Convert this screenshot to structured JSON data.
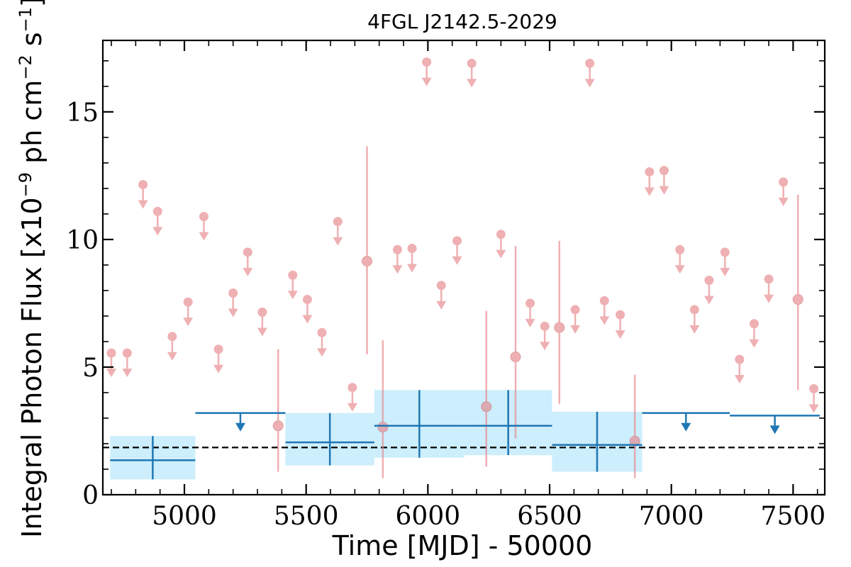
{
  "chart_data": {
    "type": "scatter",
    "title": "4FGL J2142.5-2029",
    "xlabel": "Time [MJD] - 50000",
    "ylabel": "Integral Photon Flux [x10",
    "ylabel_exp": "−9",
    "ylabel_units": " ph cm",
    "ylabel_cm_exp": "−2",
    "ylabel_s": " s",
    "ylabel_s_exp": "−1",
    "ylabel_end": "]",
    "xlim": [
      4665,
      7630
    ],
    "ylim": [
      0,
      17.8
    ],
    "xticks": [
      5000,
      5500,
      6000,
      6500,
      7000,
      7500
    ],
    "yticks": [
      0,
      5,
      10,
      15
    ],
    "mean_flux": 1.85,
    "colors": {
      "short_bins": "#e8878c",
      "long_bins": "#1f77b4",
      "long_band": "#cdeefc",
      "mean_line": "#000000"
    },
    "long_bins": [
      {
        "x0": 4695,
        "x1": 5045,
        "y": 1.35,
        "ylo": 0.6,
        "yhi": 2.3,
        "type": "point"
      },
      {
        "x0": 5045,
        "x1": 5415,
        "y": 3.2,
        "type": "ul"
      },
      {
        "x0": 5415,
        "x1": 5780,
        "y": 2.05,
        "ylo": 1.15,
        "yhi": 3.2,
        "type": "point"
      },
      {
        "x0": 5780,
        "x1": 6150,
        "y": 2.7,
        "ylo": 1.45,
        "yhi": 4.1,
        "type": "point"
      },
      {
        "x0": 6150,
        "x1": 6510,
        "y": 2.7,
        "ylo": 1.55,
        "yhi": 4.1,
        "type": "point"
      },
      {
        "x0": 6510,
        "x1": 6880,
        "y": 1.95,
        "ylo": 0.9,
        "yhi": 3.25,
        "type": "point"
      },
      {
        "x0": 6880,
        "x1": 7240,
        "y": 3.2,
        "type": "ul"
      },
      {
        "x0": 7240,
        "x1": 7610,
        "y": 3.1,
        "type": "ul"
      }
    ],
    "short_bins": [
      {
        "x": 4700,
        "y": 5.55,
        "type": "ul"
      },
      {
        "x": 4765,
        "y": 5.55,
        "type": "ul"
      },
      {
        "x": 4830,
        "y": 12.15,
        "type": "ul"
      },
      {
        "x": 4890,
        "y": 11.1,
        "type": "ul"
      },
      {
        "x": 4950,
        "y": 6.2,
        "type": "ul"
      },
      {
        "x": 5015,
        "y": 7.55,
        "type": "ul"
      },
      {
        "x": 5080,
        "y": 10.9,
        "type": "ul"
      },
      {
        "x": 5140,
        "y": 5.7,
        "type": "ul"
      },
      {
        "x": 5200,
        "y": 7.9,
        "type": "ul"
      },
      {
        "x": 5260,
        "y": 9.5,
        "type": "ul"
      },
      {
        "x": 5320,
        "y": 7.15,
        "type": "ul"
      },
      {
        "x": 5385,
        "y": 2.7,
        "ylo": 0.9,
        "yhi": 5.7,
        "type": "point"
      },
      {
        "x": 5445,
        "y": 8.6,
        "type": "ul"
      },
      {
        "x": 5505,
        "y": 7.65,
        "type": "ul"
      },
      {
        "x": 5565,
        "y": 6.35,
        "type": "ul"
      },
      {
        "x": 5630,
        "y": 10.7,
        "type": "ul"
      },
      {
        "x": 5690,
        "y": 4.2,
        "type": "ul"
      },
      {
        "x": 5750,
        "y": 9.15,
        "ylo": 5.5,
        "yhi": 13.65,
        "type": "point"
      },
      {
        "x": 5815,
        "y": 2.65,
        "ylo": 0.65,
        "yhi": 6.05,
        "type": "point"
      },
      {
        "x": 5875,
        "y": 9.6,
        "type": "ul"
      },
      {
        "x": 5935,
        "y": 9.65,
        "type": "ul"
      },
      {
        "x": 5995,
        "y": 16.95,
        "type": "ul"
      },
      {
        "x": 6055,
        "y": 8.2,
        "type": "ul"
      },
      {
        "x": 6120,
        "y": 9.95,
        "type": "ul"
      },
      {
        "x": 6180,
        "y": 16.9,
        "type": "ul"
      },
      {
        "x": 6240,
        "y": 3.45,
        "ylo": 1.1,
        "yhi": 7.2,
        "type": "point"
      },
      {
        "x": 6300,
        "y": 10.2,
        "type": "ul"
      },
      {
        "x": 6360,
        "y": 5.4,
        "ylo": 2.2,
        "yhi": 9.75,
        "type": "point"
      },
      {
        "x": 6420,
        "y": 7.5,
        "type": "ul"
      },
      {
        "x": 6480,
        "y": 6.6,
        "type": "ul"
      },
      {
        "x": 6540,
        "y": 6.55,
        "ylo": 3.55,
        "yhi": 9.95,
        "type": "point"
      },
      {
        "x": 6605,
        "y": 7.25,
        "type": "ul"
      },
      {
        "x": 6665,
        "y": 16.9,
        "type": "ul"
      },
      {
        "x": 6725,
        "y": 7.6,
        "type": "ul"
      },
      {
        "x": 6790,
        "y": 7.05,
        "type": "ul"
      },
      {
        "x": 6850,
        "y": 2.1,
        "ylo": 0.65,
        "yhi": 4.7,
        "type": "point"
      },
      {
        "x": 6910,
        "y": 12.65,
        "type": "ul"
      },
      {
        "x": 6970,
        "y": 12.7,
        "type": "ul"
      },
      {
        "x": 7035,
        "y": 9.6,
        "type": "ul"
      },
      {
        "x": 7095,
        "y": 7.25,
        "type": "ul"
      },
      {
        "x": 7155,
        "y": 8.4,
        "type": "ul"
      },
      {
        "x": 7220,
        "y": 9.5,
        "type": "ul"
      },
      {
        "x": 7280,
        "y": 5.3,
        "type": "ul"
      },
      {
        "x": 7340,
        "y": 6.7,
        "type": "ul"
      },
      {
        "x": 7400,
        "y": 8.45,
        "type": "ul"
      },
      {
        "x": 7460,
        "y": 12.25,
        "type": "ul"
      },
      {
        "x": 7520,
        "y": 7.65,
        "ylo": 4.1,
        "yhi": 11.75,
        "type": "point"
      },
      {
        "x": 7585,
        "y": 4.15,
        "type": "ul"
      }
    ]
  }
}
